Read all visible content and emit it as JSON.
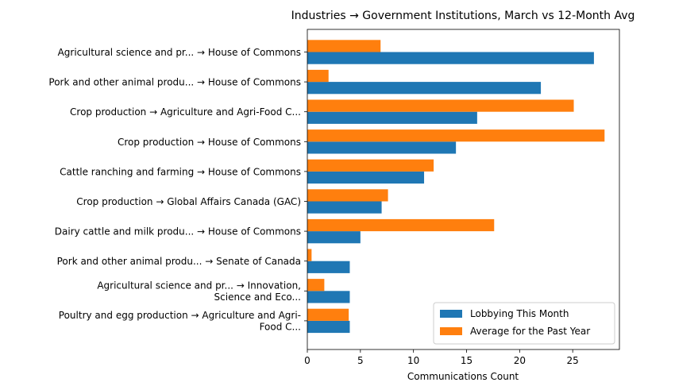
{
  "chart_data": {
    "type": "bar",
    "orientation": "horizontal",
    "title": "Industries → Government Institutions, March vs 12-Month Avg",
    "xlabel": "Communications Count",
    "ylabel": "",
    "xlim": [
      0,
      29.4
    ],
    "xticks": [
      0,
      5,
      10,
      15,
      20,
      25
    ],
    "grid": false,
    "legend_position": "bottom-right",
    "categories": [
      [
        "Agricultural science and pr... → House of Commons"
      ],
      [
        "Pork and other animal produ... → House of Commons"
      ],
      [
        "Crop production → Agriculture and Agri-Food C..."
      ],
      [
        "Crop production → House of Commons"
      ],
      [
        "Cattle ranching and farming → House of Commons"
      ],
      [
        "Crop production → Global Affairs Canada (GAC)"
      ],
      [
        "Dairy cattle and milk produ... → House of Commons"
      ],
      [
        "Pork and other animal produ... → Senate of Canada"
      ],
      [
        "Agricultural science and pr... → Innovation,",
        "Science and Eco..."
      ],
      [
        "Poultry and egg production → Agriculture and Agri-",
        "Food C..."
      ]
    ],
    "series": [
      {
        "name": "Lobbying This Month",
        "color": "#1f77b4",
        "values": [
          27,
          22,
          16,
          14,
          11,
          7,
          5,
          4,
          4,
          4
        ]
      },
      {
        "name": "Average for the Past Year",
        "color": "#ff7f0e",
        "values": [
          6.9,
          2.0,
          25.1,
          28.0,
          11.9,
          7.6,
          17.6,
          0.4,
          1.6,
          3.9
        ]
      }
    ]
  }
}
